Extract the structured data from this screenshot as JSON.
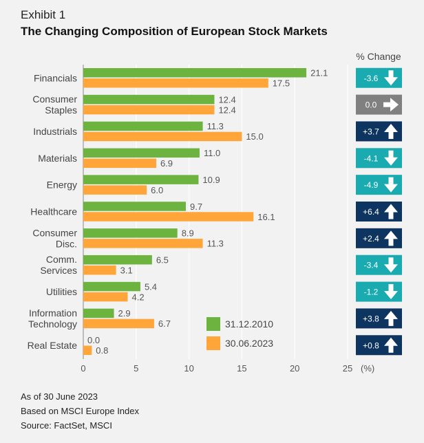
{
  "header": {
    "exhibit": "Exhibit 1",
    "title": "The Changing Composition of European Stock Markets"
  },
  "footnotes": [
    "As of 30 June 2023",
    "Based on MSCI Europe Index",
    "Source: FactSet, MSCI"
  ],
  "colors": {
    "series_2010": "#6db33f",
    "series_2023": "#ffa53a",
    "badge_down": "#1aabb0",
    "badge_up": "#0e3560",
    "badge_flat": "#808080",
    "gridline": "#ffffff",
    "axis": "#888888"
  },
  "chart_data": {
    "type": "bar",
    "orientation": "horizontal",
    "title": "The Changing Composition of European Stock Markets",
    "categories": [
      [
        "Financials"
      ],
      [
        "Consumer",
        "Staples"
      ],
      [
        "Industrials"
      ],
      [
        "Materials"
      ],
      [
        "Energy"
      ],
      [
        "Healthcare"
      ],
      [
        "Consumer",
        "Disc."
      ],
      [
        "Comm.",
        "Services"
      ],
      [
        "Utilities"
      ],
      [
        "Information",
        "Technology"
      ],
      [
        "Real Estate"
      ]
    ],
    "series": [
      {
        "name": "31.12.2010",
        "values": [
          21.1,
          12.4,
          11.3,
          11.0,
          10.9,
          9.7,
          8.9,
          6.5,
          5.4,
          2.9,
          0.0
        ],
        "labels": [
          "21.1",
          "12.4",
          "11.3",
          "11.0",
          "10.9",
          "9.7",
          "8.9",
          "6.5",
          "5.4",
          "2.9",
          "0.0"
        ]
      },
      {
        "name": "30.06.2023",
        "values": [
          17.5,
          12.4,
          15.0,
          6.9,
          6.0,
          16.1,
          11.3,
          3.1,
          4.2,
          6.7,
          0.8
        ],
        "labels": [
          "17.5",
          "12.4",
          "15.0",
          "6.9",
          "6.0",
          "16.1",
          "11.3",
          "3.1",
          "4.2",
          "6.7",
          "0.8"
        ]
      }
    ],
    "xlim": [
      0,
      25
    ],
    "xticks": [
      "0",
      "5",
      "10",
      "15",
      "20",
      "25"
    ],
    "xlabel": "(%)",
    "legend": [
      "31.12.2010",
      "30.06.2023"
    ],
    "legend_position": "bottom-right",
    "pct_change_header": "% Change",
    "pct_change": [
      {
        "label": "-3.6",
        "direction": "down"
      },
      {
        "label": "0.0",
        "direction": "flat"
      },
      {
        "label": "+3.7",
        "direction": "up"
      },
      {
        "label": "-4.1",
        "direction": "down"
      },
      {
        "label": "-4.9",
        "direction": "down"
      },
      {
        "label": "+6.4",
        "direction": "up"
      },
      {
        "label": "+2.4",
        "direction": "up"
      },
      {
        "label": "-3.4",
        "direction": "down"
      },
      {
        "label": "-1.2",
        "direction": "down"
      },
      {
        "label": "+3.8",
        "direction": "up"
      },
      {
        "label": "+0.8",
        "direction": "up"
      }
    ]
  }
}
